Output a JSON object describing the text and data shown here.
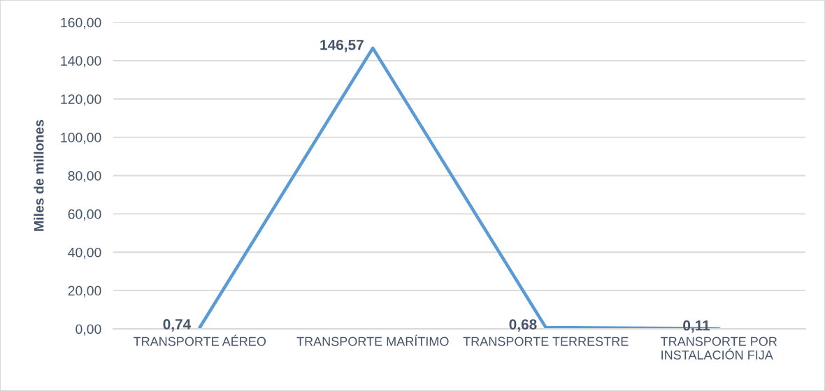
{
  "chart_data": {
    "type": "line",
    "ylabel": "Miles de millones",
    "categories": [
      "TRANSPORTE AÉREO",
      "TRANSPORTE MARÍTIMO",
      "TRANSPORTE TERRESTRE",
      "TRANSPORTE POR INSTALACIÓN FIJA"
    ],
    "series": [
      {
        "color": "#5b9bd5",
        "values": [
          0.74,
          146.57,
          0.68,
          0.11
        ],
        "value_labels": [
          "0,74",
          "146,57",
          "0,68",
          "0,11"
        ]
      }
    ],
    "ylim": [
      0,
      160
    ],
    "yticks": [
      {
        "value": 0,
        "label": "0,00"
      },
      {
        "value": 20,
        "label": "20,00"
      },
      {
        "value": 40,
        "label": "40,00"
      },
      {
        "value": 60,
        "label": "60,00"
      },
      {
        "value": 80,
        "label": "80,00"
      },
      {
        "value": 100,
        "label": "100,00"
      },
      {
        "value": 120,
        "label": "120,00"
      },
      {
        "value": 140,
        "label": "140,00"
      },
      {
        "value": 160,
        "label": "160,00"
      }
    ],
    "grid": "y",
    "marker": "none",
    "line_style": "solid"
  }
}
